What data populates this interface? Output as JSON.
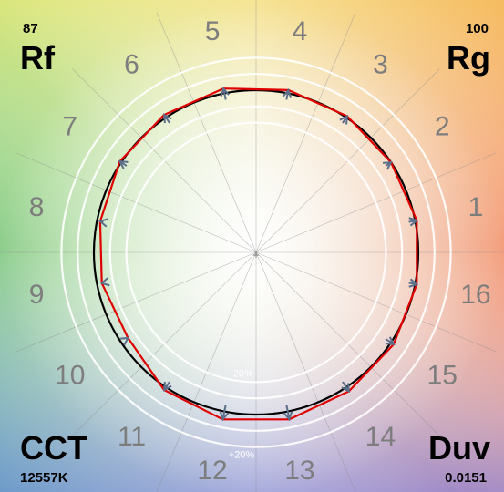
{
  "chart_data": {
    "type": "polar-vector",
    "title": "",
    "hue_bins": [
      "1",
      "2",
      "3",
      "4",
      "5",
      "6",
      "7",
      "8",
      "9",
      "10",
      "11",
      "12",
      "13",
      "14",
      "15",
      "16"
    ],
    "reference_radius": 1.0,
    "ring_labels": [
      "-20%",
      "+20%"
    ],
    "test_radius": [
      1.01,
      1.0,
      1.01,
      1.02,
      1.03,
      1.02,
      1.01,
      0.98,
      0.97,
      0.95,
      1.02,
      1.05,
      1.05,
      1.03,
      1.02,
      1.01
    ],
    "arrows": [
      {
        "bin": "1",
        "from": [
          1.0,
          1.0
        ],
        "to": [
          0.98,
          1.0
        ]
      },
      {
        "bin": "2",
        "from": [
          1.0,
          1.0
        ],
        "to": [
          1.0,
          1.0
        ]
      },
      {
        "bin": "3",
        "from": [
          1.0,
          1.0
        ],
        "to": [
          1.0,
          1.0
        ]
      },
      {
        "bin": "4",
        "from": [
          1.0,
          1.0
        ],
        "to": [
          1.0,
          1.0
        ]
      },
      {
        "bin": "5",
        "from": [
          1.0,
          1.0
        ],
        "to": [
          1.0,
          1.0
        ]
      },
      {
        "bin": "6",
        "from": [
          1.0,
          1.0
        ],
        "to": [
          1.0,
          1.0
        ]
      },
      {
        "bin": "7",
        "from": [
          1.0,
          1.0
        ],
        "to": [
          1.0,
          1.0
        ]
      },
      {
        "bin": "8",
        "from": [
          1.0,
          1.0
        ],
        "to": [
          1.0,
          1.0
        ]
      },
      {
        "bin": "9",
        "from": [
          1.0,
          1.0
        ],
        "to": [
          1.0,
          1.0
        ]
      },
      {
        "bin": "10",
        "from": [
          1.0,
          1.0
        ],
        "to": [
          1.0,
          1.0
        ]
      },
      {
        "bin": "11",
        "from": [
          1.0,
          1.0
        ],
        "to": [
          1.0,
          1.0
        ]
      },
      {
        "bin": "12",
        "from": [
          1.0,
          1.0
        ],
        "to": [
          1.0,
          1.0
        ]
      },
      {
        "bin": "13",
        "from": [
          1.0,
          1.0
        ],
        "to": [
          1.0,
          1.0
        ]
      },
      {
        "bin": "14",
        "from": [
          1.0,
          1.0
        ],
        "to": [
          1.0,
          1.0
        ]
      },
      {
        "bin": "15",
        "from": [
          1.0,
          1.0
        ],
        "to": [
          1.0,
          1.0
        ]
      },
      {
        "bin": "16",
        "from": [
          1.0,
          1.0
        ],
        "to": [
          1.0,
          1.0
        ]
      }
    ],
    "colors": {
      "reference": "#000000",
      "test": "#e00000",
      "rings": "#ffffff",
      "spokes": "#888888"
    },
    "grid": true,
    "legend": "none"
  },
  "metrics": {
    "rf_label": "Rf",
    "rf_value": "87",
    "rg_label": "Rg",
    "rg_value": "100",
    "cct_label": "CCT",
    "cct_value": "12557K",
    "duv_label": "Duv",
    "duv_value": "0.0151"
  }
}
